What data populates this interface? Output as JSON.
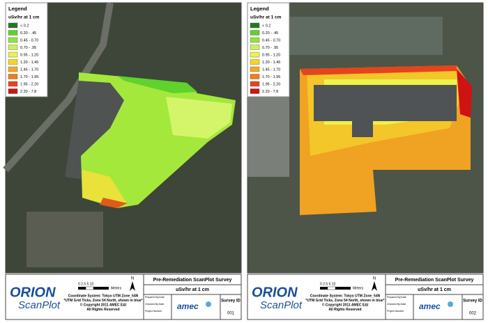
{
  "panels": [
    {
      "legend": {
        "title": "Legend",
        "unit": "uSv/hr at 1 cm",
        "items": [
          {
            "label": "< 0.2",
            "color": "#1f7a1f"
          },
          {
            "label": "0.20 - .45",
            "color": "#5fd22c"
          },
          {
            "label": "0.45 - 0.70",
            "color": "#94e23c"
          },
          {
            "label": "0.70 - .95",
            "color": "#ccf25a"
          },
          {
            "label": "0.95 - 1.20",
            "color": "#eef24a"
          },
          {
            "label": "1.20 - 1.45",
            "color": "#f7d426"
          },
          {
            "label": "1.45 - 1.70",
            "color": "#f5aa20"
          },
          {
            "label": "1.70 - 1.95",
            "color": "#f07c1e"
          },
          {
            "label": "1.95 - 2.20",
            "color": "#e6441a"
          },
          {
            "label": "2.20 - 7.8",
            "color": "#d01212"
          }
        ]
      },
      "footer": {
        "brand": "ORION",
        "product": "ScanPlot",
        "scale": "0 2.5 5     10",
        "scale_unit": "Meters",
        "north": "N",
        "coordinates": [
          "Coordinate System: Tokyo UTM Zone_54N",
          "*UTM Grid Ticks, Zone 54 North, shown in blue*",
          "© Copyright 2011 AMEC E&I",
          "All Rights Reserved"
        ],
        "survey_title": "Pre-Remediation ScanPlot Survey",
        "survey_unit": "uSv/hr at 1 cm",
        "info": [
          "Prepared By:Date",
          "Checked By:Date",
          "Project Number"
        ],
        "company": "amec",
        "survey_label": "Survey ID",
        "survey_id": "001"
      }
    },
    {
      "legend": {
        "title": "Legend",
        "unit": "uSv/hr at 1 cm",
        "items": [
          {
            "label": "< 0.2",
            "color": "#1f7a1f"
          },
          {
            "label": "0.20 - .45",
            "color": "#5fd22c"
          },
          {
            "label": "0.45 - 0.70",
            "color": "#94e23c"
          },
          {
            "label": "0.70 - .95",
            "color": "#ccf25a"
          },
          {
            "label": "0.95 - 1.20",
            "color": "#eef24a"
          },
          {
            "label": "1.20 - 1.45",
            "color": "#f7d426"
          },
          {
            "label": "1.45 - 1.70",
            "color": "#f5aa20"
          },
          {
            "label": "1.70 - 1.95",
            "color": "#f07c1e"
          },
          {
            "label": "1.95 - 2.20",
            "color": "#e6441a"
          },
          {
            "label": "2.20 - 7.8",
            "color": "#d01212"
          }
        ]
      },
      "footer": {
        "brand": "ORION",
        "product": "ScanPlot",
        "scale": "0 2.5 5     10",
        "scale_unit": "Meters",
        "north": "N",
        "coordinates": [
          "Coordinate System: Tokyo UTM Zone_54N",
          "*UTM Grid Ticks, Zone 54 North, shown in blue*",
          "© Copyright 2011 AMEC E&I",
          "All Rights Reserved"
        ],
        "survey_title": "Pre-Remediation ScanPlot Survey",
        "survey_unit": "uSv/hr at 1 cm",
        "info": [
          "Prepared By:Date",
          "Checked By:Date",
          "Project Number"
        ],
        "company": "amec",
        "survey_label": "Survey ID",
        "survey_id": "002"
      }
    }
  ]
}
